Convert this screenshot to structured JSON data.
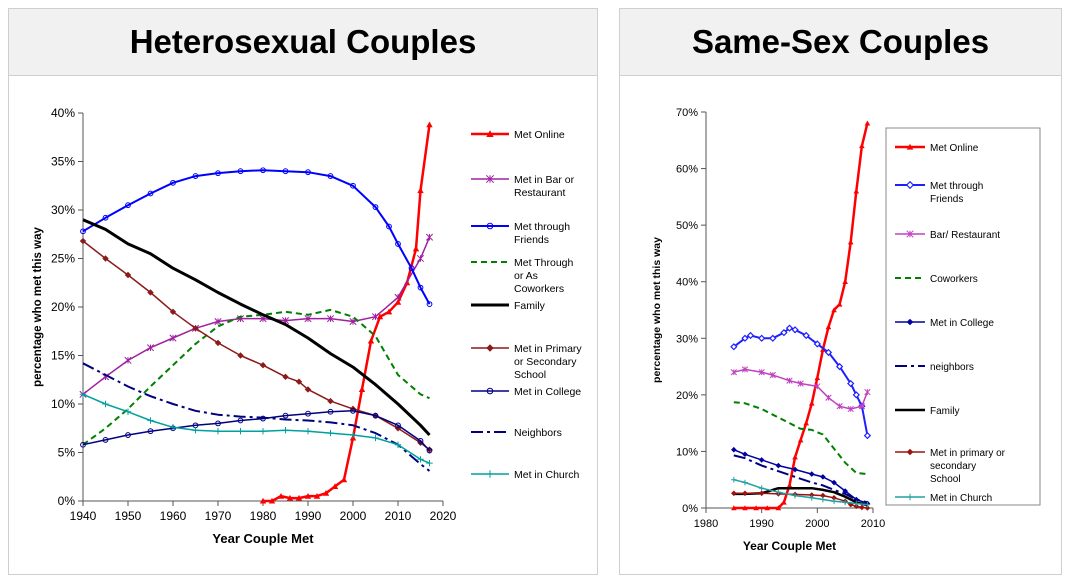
{
  "panels": [
    {
      "title": "Heterosexual Couples"
    },
    {
      "title": "Same-Sex Couples"
    }
  ],
  "chart_data": [
    {
      "type": "line",
      "title": "Heterosexual Couples",
      "xlabel": "Year Couple Met",
      "ylabel": "percentage who met this way",
      "xlim": [
        1940,
        2020
      ],
      "ylim": [
        0,
        40
      ],
      "xticks": [
        "1940",
        "1950",
        "1960",
        "1970",
        "1980",
        "1990",
        "2000",
        "2010",
        "2020"
      ],
      "yticks": [
        "0%",
        "5%",
        "10%",
        "15%",
        "20%",
        "25%",
        "30%",
        "35%",
        "40%"
      ],
      "grid": false,
      "legend_position": "right",
      "series": [
        {
          "name": "Met Online",
          "color": "#ff0000",
          "marker": "triangle",
          "dash": "solid",
          "width": 2.5,
          "x": [
            1980,
            1982,
            1984,
            1986,
            1988,
            1990,
            1992,
            1994,
            1996,
            1998,
            2000,
            2002,
            2004,
            2006,
            2008,
            2010,
            2012,
            2014,
            2015,
            2017
          ],
          "y": [
            0,
            0,
            0.5,
            0.3,
            0.3,
            0.5,
            0.5,
            0.8,
            1.5,
            2.2,
            6.5,
            11.5,
            16.5,
            19,
            19.5,
            20.5,
            22.5,
            26,
            32,
            38.8
          ]
        },
        {
          "name": "Met in Bar or Restaurant",
          "color": "#a020a0",
          "marker": "star",
          "dash": "solid",
          "width": 1.5,
          "x": [
            1940,
            1945,
            1950,
            1955,
            1960,
            1965,
            1970,
            1975,
            1980,
            1985,
            1990,
            1995,
            2000,
            2005,
            2010,
            2015,
            2017
          ],
          "y": [
            11,
            12.8,
            14.5,
            15.8,
            16.8,
            17.8,
            18.5,
            18.8,
            18.8,
            18.6,
            18.8,
            18.8,
            18.5,
            19,
            21,
            25,
            27.2
          ]
        },
        {
          "name": "Met through Friends",
          "color": "#0000ff",
          "marker": "circle",
          "dash": "solid",
          "width": 2,
          "x": [
            1940,
            1945,
            1950,
            1955,
            1960,
            1965,
            1970,
            1975,
            1980,
            1985,
            1990,
            1995,
            2000,
            2005,
            2008,
            2010,
            2013,
            2015,
            2017
          ],
          "y": [
            27.8,
            29.2,
            30.5,
            31.7,
            32.8,
            33.5,
            33.8,
            34,
            34.1,
            34,
            33.9,
            33.5,
            32.5,
            30.3,
            28.3,
            26.5,
            24,
            22,
            20.3
          ]
        },
        {
          "name": "Met Through or As Coworkers",
          "color": "#008000",
          "marker": "none",
          "dash": "6,4",
          "width": 2,
          "x": [
            1940,
            1945,
            1950,
            1955,
            1960,
            1965,
            1970,
            1975,
            1980,
            1985,
            1990,
            1995,
            2000,
            2005,
            2010,
            2015,
            2017
          ],
          "y": [
            5.8,
            7.5,
            9.5,
            11.8,
            14,
            16.2,
            18,
            19,
            19.2,
            19.5,
            19.2,
            19.7,
            19,
            17,
            13,
            11,
            10.6
          ]
        },
        {
          "name": "Family",
          "color": "#000000",
          "marker": "none",
          "dash": "solid",
          "width": 3,
          "x": [
            1940,
            1945,
            1950,
            1955,
            1960,
            1965,
            1970,
            1975,
            1980,
            1985,
            1990,
            1995,
            2000,
            2005,
            2010,
            2015,
            2017
          ],
          "y": [
            29,
            28,
            26.5,
            25.5,
            24,
            22.8,
            21.5,
            20.3,
            19.2,
            18.2,
            16.8,
            15.2,
            13.8,
            12,
            10,
            7.8,
            6.8
          ]
        },
        {
          "name": "Met in Primary or Secondary School",
          "color": "#8b1a1a",
          "marker": "diamond",
          "dash": "solid",
          "width": 1.5,
          "x": [
            1940,
            1945,
            1950,
            1955,
            1960,
            1965,
            1970,
            1975,
            1980,
            1985,
            1988,
            1990,
            1995,
            2000,
            2005,
            2010,
            2015,
            2017
          ],
          "y": [
            26.8,
            25,
            23.3,
            21.5,
            19.5,
            17.8,
            16.3,
            15,
            14,
            12.8,
            12.3,
            11.5,
            10.3,
            9.5,
            8.8,
            7.5,
            6,
            5.3
          ]
        },
        {
          "name": "Met in College",
          "color": "#000080",
          "marker": "circle",
          "dash": "solid",
          "width": 1.5,
          "x": [
            1940,
            1945,
            1950,
            1955,
            1960,
            1965,
            1970,
            1975,
            1980,
            1985,
            1990,
            1995,
            2000,
            2005,
            2010,
            2015,
            2017
          ],
          "y": [
            5.8,
            6.3,
            6.8,
            7.2,
            7.5,
            7.8,
            8,
            8.3,
            8.5,
            8.8,
            9,
            9.2,
            9.3,
            8.8,
            7.8,
            6.2,
            5.2
          ]
        },
        {
          "name": "Neighbors",
          "color": "#000080",
          "marker": "none",
          "dash": "12,4,3,4",
          "width": 2,
          "x": [
            1940,
            1945,
            1950,
            1955,
            1960,
            1965,
            1970,
            1975,
            1980,
            1985,
            1990,
            1995,
            2000,
            2005,
            2010,
            2015,
            2017
          ],
          "y": [
            14.2,
            13,
            11.8,
            10.8,
            10,
            9.3,
            8.9,
            8.7,
            8.6,
            8.4,
            8.3,
            8.1,
            7.8,
            7,
            5.8,
            3.8,
            3.1
          ]
        },
        {
          "name": "Met in Church",
          "color": "#00a0a0",
          "marker": "plus",
          "dash": "solid",
          "width": 1.5,
          "x": [
            1940,
            1945,
            1950,
            1955,
            1960,
            1965,
            1970,
            1975,
            1980,
            1985,
            1990,
            1995,
            2000,
            2005,
            2010,
            2015,
            2017
          ],
          "y": [
            11,
            10,
            9.2,
            8.3,
            7.6,
            7.3,
            7.2,
            7.2,
            7.2,
            7.3,
            7.2,
            7,
            6.8,
            6.5,
            5.8,
            4.3,
            3.9
          ]
        }
      ],
      "legend": [
        {
          "series": 0,
          "lines": [
            "Met Online"
          ]
        },
        {
          "series": 1,
          "lines": [
            "Met in Bar or",
            "Restaurant"
          ]
        },
        {
          "series": 2,
          "lines": [
            "Met through",
            "Friends"
          ]
        },
        {
          "series": 3,
          "lines": [
            "Met Through",
            "or As",
            "Coworkers"
          ]
        },
        {
          "series": 4,
          "lines": [
            "Family"
          ]
        },
        {
          "series": 5,
          "lines": [
            "Met in Primary",
            "or Secondary",
            "School"
          ]
        },
        {
          "series": 6,
          "lines": [
            "Met in College"
          ]
        },
        {
          "series": 7,
          "lines": [
            "Neighbors"
          ]
        },
        {
          "series": 8,
          "lines": [
            "Met in Church"
          ]
        }
      ]
    },
    {
      "type": "line",
      "title": "Same-Sex Couples",
      "xlabel": "Year Couple Met",
      "ylabel": "percentage who met this way",
      "xlim": [
        1980,
        2010
      ],
      "ylim": [
        0,
        70
      ],
      "xticks": [
        "1980",
        "1990",
        "2000",
        "2010"
      ],
      "yticks": [
        "0%",
        "10%",
        "20%",
        "30%",
        "40%",
        "50%",
        "60%",
        "70%"
      ],
      "grid": false,
      "legend_position": "right",
      "series": [
        {
          "name": "Met Online",
          "color": "#ff0000",
          "marker": "triangle",
          "dash": "solid",
          "width": 2.5,
          "x": [
            1985,
            1987,
            1989,
            1991,
            1993,
            1994,
            1995,
            1996,
            1997,
            1998,
            1999,
            2000,
            2001,
            2002,
            2003,
            2004,
            2005,
            2006,
            2007,
            2008,
            2009
          ],
          "y": [
            0,
            0,
            0,
            0,
            0,
            1,
            4,
            9,
            12,
            15,
            18.5,
            23,
            28,
            32,
            35,
            36,
            40,
            47,
            56,
            64,
            68
          ]
        },
        {
          "name": "Met through Friends",
          "color": "#2020ff",
          "marker": "diamond-open",
          "dash": "solid",
          "width": 2,
          "x": [
            1985,
            1987,
            1988,
            1990,
            1992,
            1994,
            1995,
            1996,
            1998,
            2000,
            2002,
            2004,
            2006,
            2007,
            2008,
            2009
          ],
          "y": [
            28.5,
            30,
            30.5,
            30,
            30,
            31,
            31.8,
            31.5,
            30.5,
            29,
            27.5,
            25,
            22,
            20,
            18,
            12.8
          ]
        },
        {
          "name": "Bar/ Restaurant",
          "color": "#c040c0",
          "marker": "star",
          "dash": "solid",
          "width": 1.5,
          "x": [
            1985,
            1987,
            1990,
            1992,
            1995,
            1997,
            2000,
            2002,
            2004,
            2006,
            2008,
            2009
          ],
          "y": [
            24,
            24.5,
            24,
            23.5,
            22.5,
            22,
            21.5,
            19.5,
            18,
            17.5,
            18,
            20.5
          ]
        },
        {
          "name": "Coworkers",
          "color": "#008000",
          "marker": "none",
          "dash": "6,4",
          "width": 2,
          "x": [
            1985,
            1987,
            1990,
            1992,
            1995,
            1997,
            1999,
            2001,
            2003,
            2005,
            2007,
            2009
          ],
          "y": [
            18.7,
            18.5,
            17.5,
            16.5,
            15,
            14,
            13.8,
            13,
            10.5,
            8,
            6.2,
            6
          ]
        },
        {
          "name": "Met in College",
          "color": "#0000a0",
          "marker": "diamond",
          "dash": "solid",
          "width": 1.5,
          "x": [
            1985,
            1987,
            1990,
            1993,
            1996,
            1999,
            2001,
            2003,
            2005,
            2007,
            2009
          ],
          "y": [
            10.3,
            9.5,
            8.5,
            7.5,
            6.8,
            6,
            5.5,
            4.5,
            3,
            1.5,
            0.8
          ]
        },
        {
          "name": "neighbors",
          "color": "#000080",
          "marker": "none",
          "dash": "12,4,3,4",
          "width": 2,
          "x": [
            1985,
            1987,
            1990,
            1993,
            1996,
            1999,
            2001,
            2003,
            2005,
            2007,
            2009
          ],
          "y": [
            9.3,
            8.8,
            7.5,
            6.5,
            5.5,
            4.5,
            4,
            3.2,
            2.5,
            1.5,
            1
          ]
        },
        {
          "name": "Family",
          "color": "#000000",
          "marker": "none",
          "dash": "solid",
          "width": 2.5,
          "x": [
            1985,
            1987,
            1990,
            1993,
            1996,
            1999,
            2001,
            2003,
            2005,
            2007,
            2009
          ],
          "y": [
            2.5,
            2.5,
            2.6,
            3.5,
            3.5,
            3.5,
            3.2,
            2.8,
            2,
            1,
            0.5
          ]
        },
        {
          "name": "Met in primary or secondary School",
          "color": "#a01010",
          "marker": "diamond",
          "dash": "solid",
          "width": 1.5,
          "x": [
            1985,
            1987,
            1990,
            1993,
            1996,
            1999,
            2001,
            2003,
            2005,
            2006,
            2007,
            2008,
            2009
          ],
          "y": [
            2.6,
            2.6,
            2.6,
            2.5,
            2.4,
            2.3,
            2.2,
            1.8,
            1.2,
            0.6,
            0.3,
            0.1,
            0
          ]
        },
        {
          "name": "Met in Church",
          "color": "#20a0a0",
          "marker": "plus",
          "dash": "solid",
          "width": 1.5,
          "x": [
            1985,
            1987,
            1990,
            1993,
            1996,
            1999,
            2001,
            2003,
            2005,
            2007,
            2009
          ],
          "y": [
            5,
            4.5,
            3.5,
            2.8,
            2.2,
            1.8,
            1.5,
            1.2,
            1,
            0.8,
            0.6
          ]
        }
      ],
      "legend": [
        {
          "series": 0,
          "lines": [
            "Met Online"
          ]
        },
        {
          "series": 1,
          "lines": [
            "Met through",
            "Friends"
          ]
        },
        {
          "series": 2,
          "lines": [
            "Bar/ Restaurant"
          ]
        },
        {
          "series": 3,
          "lines": [
            "Coworkers"
          ]
        },
        {
          "series": 4,
          "lines": [
            "Met in College"
          ]
        },
        {
          "series": 5,
          "lines": [
            "neighbors"
          ]
        },
        {
          "series": 6,
          "lines": [
            "Family"
          ]
        },
        {
          "series": 7,
          "lines": [
            "Met in primary or",
            "secondary",
            "School"
          ]
        },
        {
          "series": 8,
          "lines": [
            "Met in Church"
          ]
        }
      ]
    }
  ]
}
